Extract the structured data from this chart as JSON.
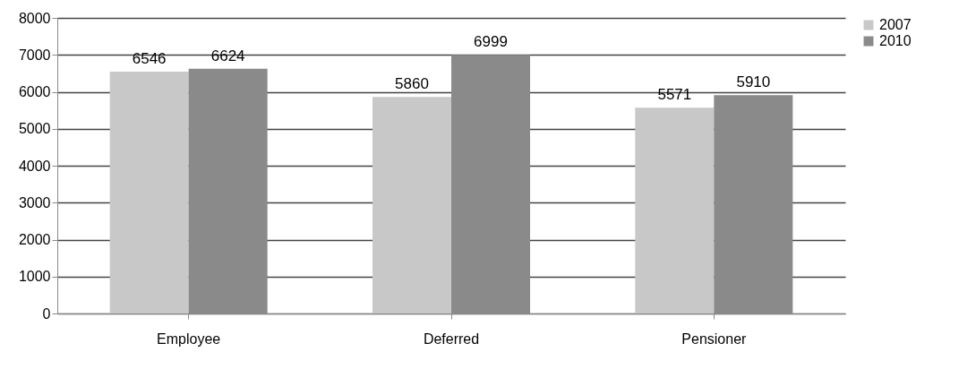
{
  "chart_data": {
    "type": "bar",
    "categories": [
      "Employee",
      "Deferred",
      "Pensioner"
    ],
    "series": [
      {
        "name": "2007",
        "color": "#c8c8c8",
        "values": [
          6546,
          5860,
          5571
        ]
      },
      {
        "name": "2010",
        "color": "#8a8a8a",
        "values": [
          6624,
          6999,
          5910
        ]
      }
    ],
    "ylim": [
      0,
      8000
    ],
    "yticks": [
      0,
      1000,
      2000,
      3000,
      4000,
      5000,
      6000,
      7000,
      8000
    ],
    "grid": "y",
    "legend": "right",
    "data_labels": true
  }
}
